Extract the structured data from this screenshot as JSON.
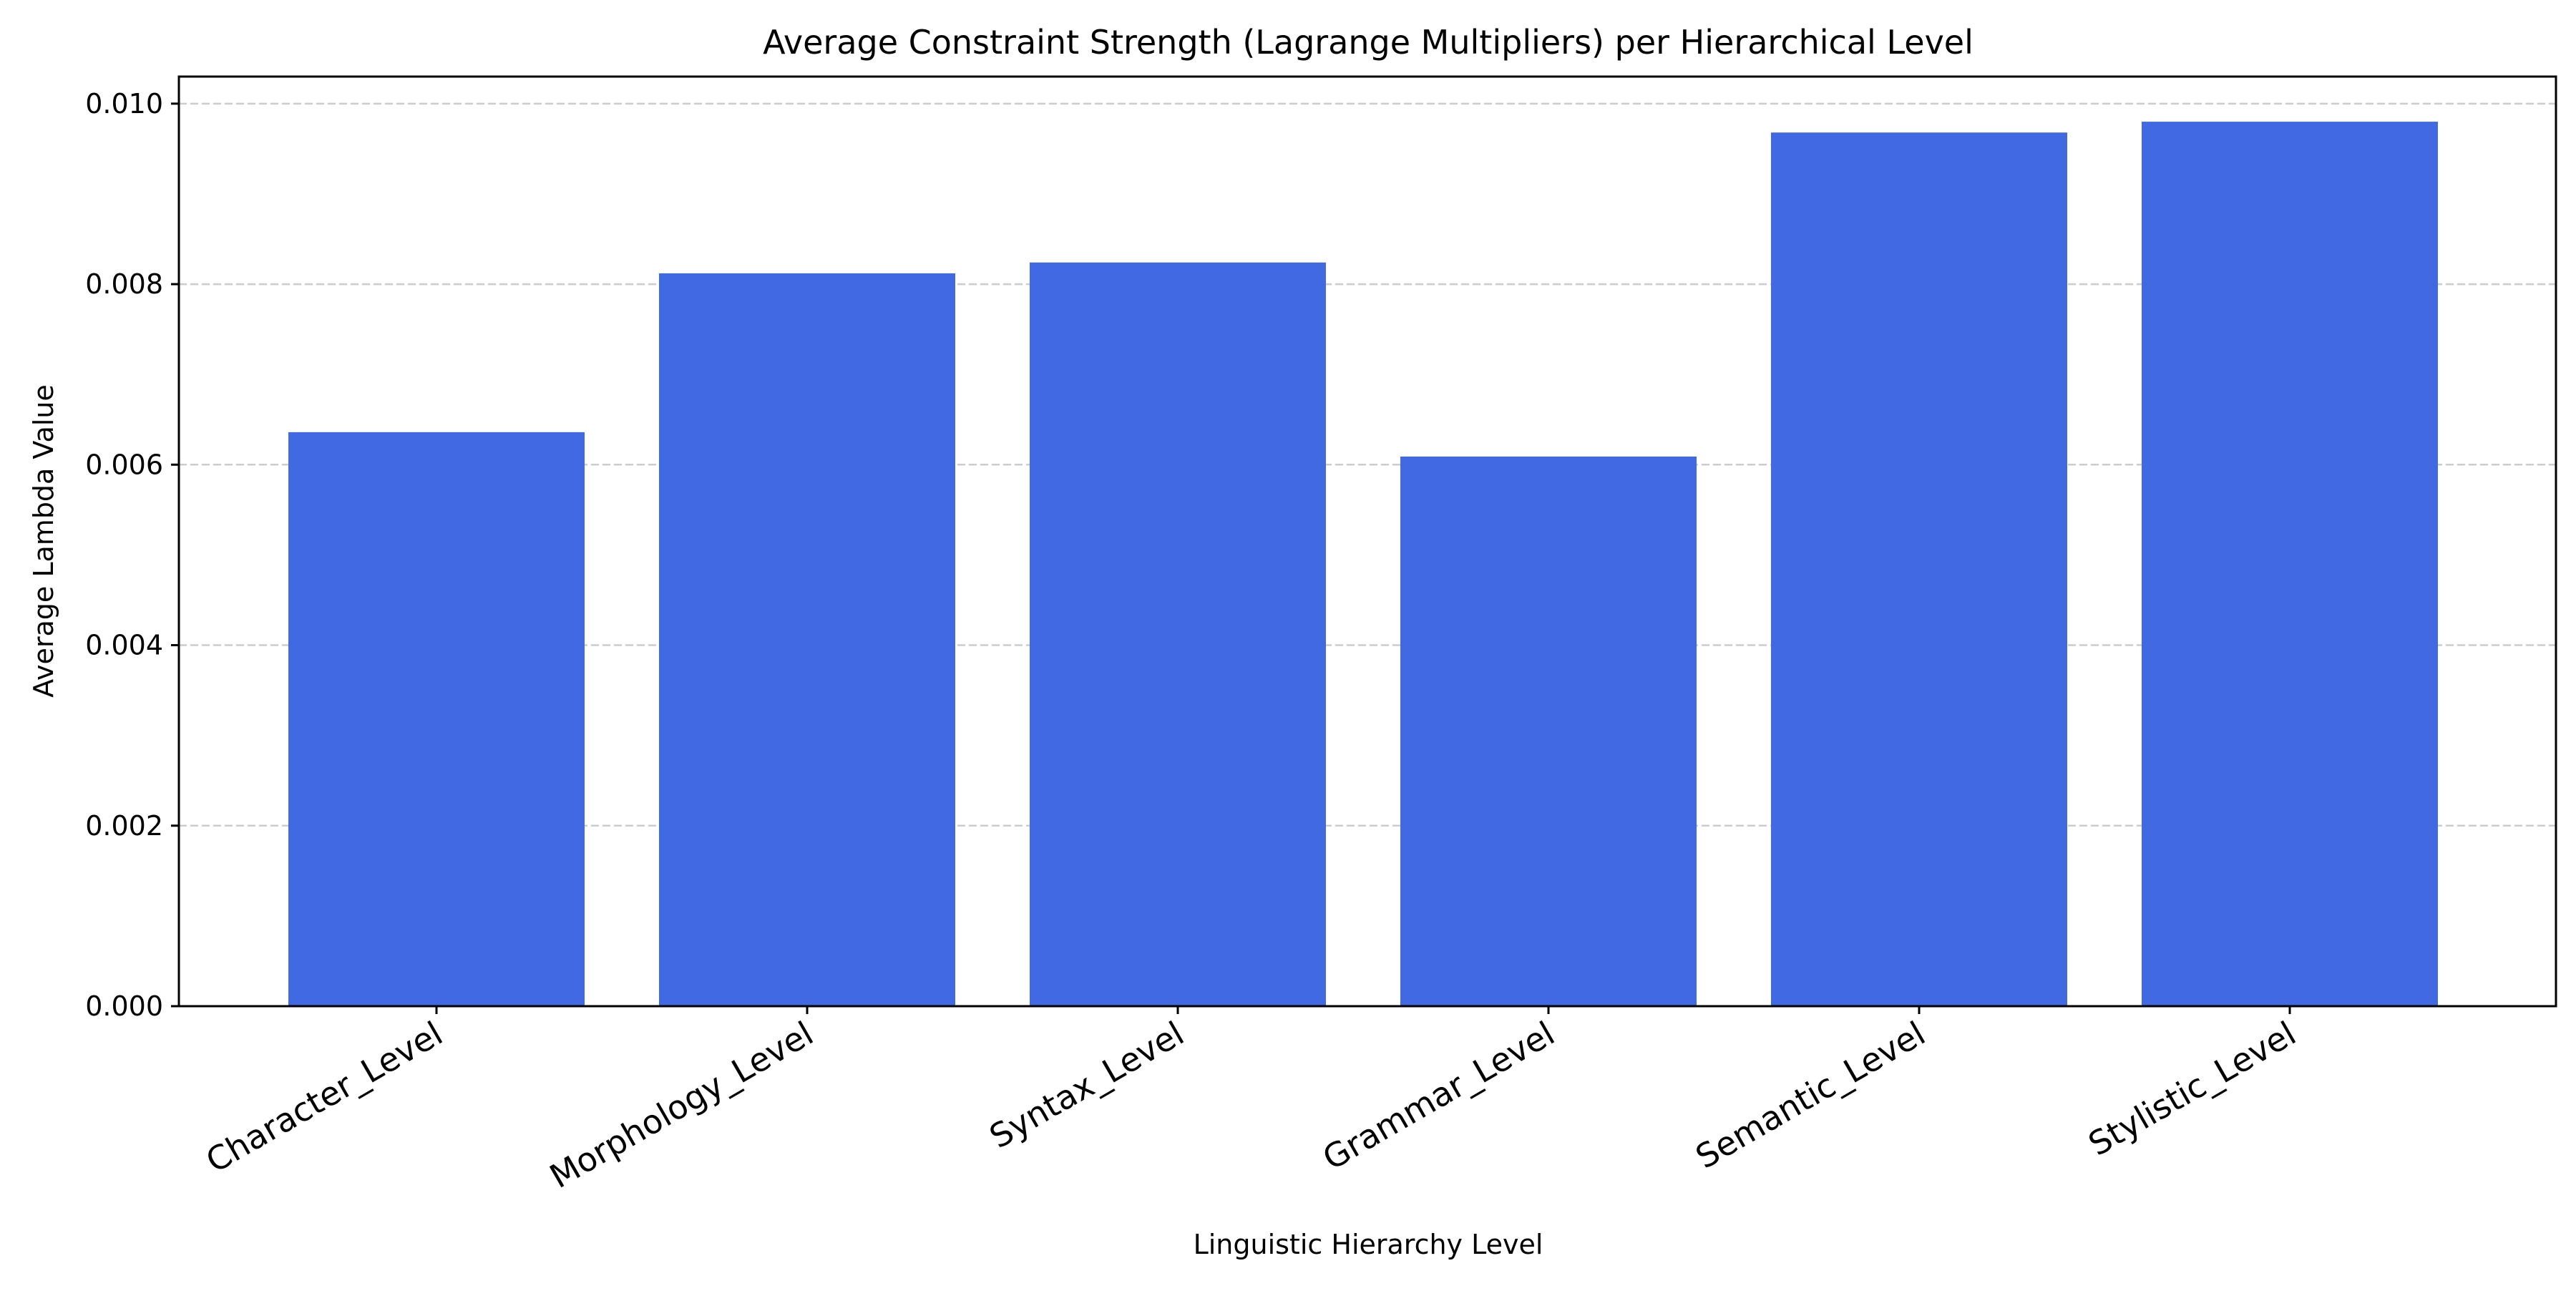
{
  "chart_data": {
    "type": "bar",
    "title": "Average Constraint Strength (Lagrange Multipliers) per Hierarchical Level",
    "xlabel": "Linguistic Hierarchy Level",
    "ylabel": "Average Lambda Value",
    "categories": [
      "Character_Level",
      "Morphology_Level",
      "Syntax_Level",
      "Grammar_Level",
      "Semantic_Level",
      "Stylistic_Level"
    ],
    "values": [
      0.00636,
      0.00812,
      0.00824,
      0.00609,
      0.00968,
      0.0098
    ],
    "ylim": [
      0,
      0.0103
    ],
    "yticks": [
      0.0,
      0.002,
      0.004,
      0.006,
      0.008,
      0.01
    ],
    "ytick_labels": [
      "0.000",
      "0.002",
      "0.004",
      "0.006",
      "0.008",
      "0.010"
    ],
    "grid": "y-dashed",
    "bar_color": "#4169e1",
    "grid_color": "#cccccc"
  }
}
